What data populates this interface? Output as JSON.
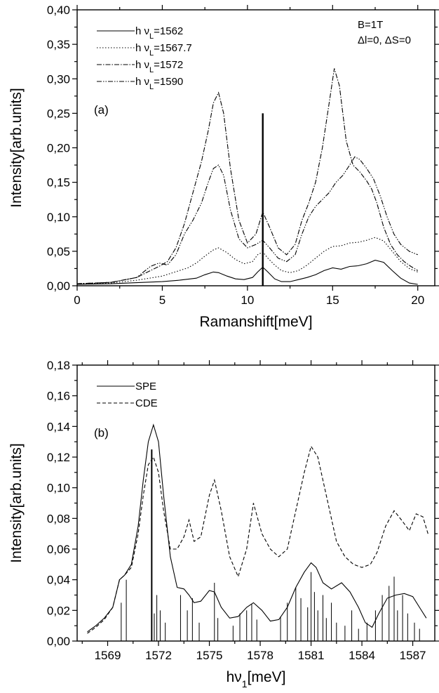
{
  "chart_data": [
    {
      "type": "line",
      "panel_label": "(a)",
      "xlabel": "Ramanshift[meV]",
      "ylabel": "Intensity[arb.units]",
      "xlim": [
        0,
        21
      ],
      "ylim": [
        0,
        0.4
      ],
      "xticks": [
        0,
        5,
        10,
        15,
        20
      ],
      "xtick_labels": [
        "0",
        "5",
        "10",
        "15",
        "20"
      ],
      "yticks": [
        0,
        0.05,
        0.1,
        0.15,
        0.2,
        0.25,
        0.3,
        0.35,
        0.4
      ],
      "ytick_labels": [
        "0,00",
        "0,05",
        "0,10",
        "0,15",
        "0,20",
        "0,25",
        "0,30",
        "0,35",
        "0,40"
      ],
      "legend_position": "top-left",
      "annotations": [
        "B=1T",
        "Δl=0,   ΔS=0"
      ],
      "vertical_marker": {
        "x": 10.9,
        "y": 0.25
      },
      "series": [
        {
          "name": "h ν_L=1562",
          "legend_prefix": "h ν",
          "legend_sub": "L",
          "legend_value": "=1562",
          "style": "solid",
          "x": [
            0,
            2,
            4,
            5,
            6,
            7,
            7.5,
            8,
            8.3,
            8.8,
            9.3,
            9.8,
            10.3,
            10.6,
            10.9,
            11.2,
            11.6,
            12,
            12.5,
            13,
            13.5,
            14,
            14.5,
            15,
            15.5,
            16,
            16.5,
            17,
            17.5,
            18,
            18.5,
            19,
            19.5,
            20
          ],
          "y": [
            0.002,
            0.003,
            0.005,
            0.006,
            0.008,
            0.011,
            0.016,
            0.02,
            0.019,
            0.014,
            0.01,
            0.009,
            0.012,
            0.02,
            0.027,
            0.02,
            0.01,
            0.006,
            0.006,
            0.009,
            0.012,
            0.016,
            0.022,
            0.026,
            0.024,
            0.028,
            0.029,
            0.032,
            0.037,
            0.034,
            0.022,
            0.011,
            0.004,
            0.002
          ]
        },
        {
          "name": "h ν_L=1567.7",
          "legend_prefix": "h ν",
          "legend_sub": "L",
          "legend_value": "=1567.7",
          "style": "dotted",
          "x": [
            0,
            2,
            3.5,
            4.5,
            5,
            5.5,
            6,
            6.5,
            7,
            7.5,
            8,
            8.3,
            8.8,
            9.3,
            9.8,
            10.3,
            10.6,
            10.9,
            11.2,
            11.6,
            12,
            12.5,
            13,
            13.5,
            14,
            14.5,
            15,
            15.5,
            16,
            16.5,
            17,
            17.5,
            18,
            18.5,
            19,
            19.5,
            20
          ],
          "y": [
            0.003,
            0.004,
            0.008,
            0.012,
            0.014,
            0.018,
            0.022,
            0.026,
            0.033,
            0.043,
            0.052,
            0.055,
            0.048,
            0.038,
            0.032,
            0.035,
            0.045,
            0.049,
            0.04,
            0.03,
            0.022,
            0.019,
            0.022,
            0.03,
            0.04,
            0.05,
            0.057,
            0.058,
            0.062,
            0.063,
            0.066,
            0.07,
            0.065,
            0.05,
            0.035,
            0.025,
            0.02
          ]
        },
        {
          "name": "h ν_L=1572",
          "legend_prefix": "h ν",
          "legend_sub": "L",
          "legend_value": "=1572",
          "style": "dashdot",
          "x": [
            0,
            2,
            3.5,
            4.3,
            4.8,
            5.3,
            5.8,
            6.3,
            6.8,
            7.3,
            7.7,
            8.0,
            8.3,
            8.6,
            9,
            9.5,
            10,
            10.5,
            10.9,
            11.3,
            11.8,
            12.3,
            12.8,
            13.2,
            13.6,
            14,
            14.4,
            14.8,
            15.1,
            15.4,
            15.8,
            16.2,
            16.6,
            17,
            17.3,
            17.6,
            18,
            18.4,
            18.8,
            19.2,
            19.6,
            20
          ],
          "y": [
            0.003,
            0.005,
            0.012,
            0.022,
            0.028,
            0.035,
            0.055,
            0.09,
            0.135,
            0.18,
            0.225,
            0.265,
            0.28,
            0.25,
            0.17,
            0.095,
            0.062,
            0.075,
            0.107,
            0.085,
            0.055,
            0.045,
            0.06,
            0.095,
            0.12,
            0.15,
            0.2,
            0.265,
            0.315,
            0.29,
            0.21,
            0.175,
            0.165,
            0.152,
            0.14,
            0.12,
            0.085,
            0.06,
            0.045,
            0.035,
            0.028,
            0.022
          ]
        },
        {
          "name": "h ν_L=1590",
          "legend_prefix": "h ν",
          "legend_sub": "L",
          "legend_value": "=1590",
          "style": "dashdotdot",
          "x": [
            0,
            2,
            3.5,
            4.3,
            4.8,
            5.3,
            5.8,
            6.3,
            6.8,
            7.3,
            7.7,
            8.0,
            8.3,
            8.6,
            9,
            9.5,
            10,
            10.5,
            10.9,
            11.3,
            11.8,
            12.3,
            12.8,
            13.2,
            13.6,
            14,
            14.4,
            14.8,
            15.2,
            15.6,
            16,
            16.3,
            16.6,
            17,
            17.4,
            17.8,
            18.2,
            18.6,
            19,
            19.5,
            20
          ],
          "y": [
            0.003,
            0.005,
            0.012,
            0.028,
            0.033,
            0.03,
            0.045,
            0.075,
            0.095,
            0.12,
            0.15,
            0.17,
            0.175,
            0.16,
            0.11,
            0.068,
            0.055,
            0.06,
            0.066,
            0.055,
            0.04,
            0.035,
            0.045,
            0.075,
            0.1,
            0.115,
            0.125,
            0.135,
            0.15,
            0.16,
            0.175,
            0.187,
            0.183,
            0.17,
            0.155,
            0.13,
            0.1,
            0.075,
            0.06,
            0.05,
            0.045
          ]
        }
      ]
    },
    {
      "type": "line",
      "panel_label": "(b)",
      "xlabel_prefix": "hν",
      "xlabel_sub": "1",
      "xlabel_suffix": "[meV]",
      "ylabel": "Intensity[arb.units]",
      "xlim": [
        1567.2,
        1588.3
      ],
      "ylim": [
        0,
        0.18
      ],
      "xticks": [
        1569,
        1572,
        1575,
        1578,
        1581,
        1584,
        1587
      ],
      "xtick_labels": [
        "1569",
        "1572",
        "1575",
        "1578",
        "1581",
        "1584",
        "1587"
      ],
      "yticks": [
        0,
        0.02,
        0.04,
        0.06,
        0.08,
        0.1,
        0.12,
        0.14,
        0.16,
        0.18
      ],
      "ytick_labels": [
        "0,00",
        "0,02",
        "0,04",
        "0,06",
        "0,08",
        "0,10",
        "0,12",
        "0,14",
        "0,16",
        "0,18"
      ],
      "legend_position": "top-left",
      "series": [
        {
          "name": "SPE",
          "style": "solid",
          "x": [
            1567.8,
            1568.3,
            1568.8,
            1569.3,
            1569.7,
            1570.0,
            1570.4,
            1570.8,
            1571.1,
            1571.4,
            1571.7,
            1572.0,
            1572.3,
            1572.7,
            1573.1,
            1573.5,
            1573.8,
            1574.1,
            1574.5,
            1575.0,
            1575.3,
            1575.7,
            1576.2,
            1576.7,
            1577.2,
            1577.6,
            1578.1,
            1578.6,
            1579.1,
            1579.6,
            1580.1,
            1580.6,
            1581.0,
            1581.3,
            1581.7,
            1582.2,
            1582.8,
            1583.3,
            1583.8,
            1584.2,
            1584.6,
            1585.0,
            1585.5,
            1586.0,
            1586.5,
            1587.0,
            1587.4,
            1587.8
          ],
          "y": [
            0.006,
            0.01,
            0.015,
            0.022,
            0.04,
            0.043,
            0.05,
            0.075,
            0.105,
            0.13,
            0.141,
            0.13,
            0.095,
            0.055,
            0.035,
            0.034,
            0.03,
            0.025,
            0.026,
            0.033,
            0.032,
            0.022,
            0.015,
            0.016,
            0.022,
            0.025,
            0.02,
            0.013,
            0.014,
            0.022,
            0.035,
            0.045,
            0.051,
            0.048,
            0.038,
            0.034,
            0.038,
            0.032,
            0.022,
            0.012,
            0.009,
            0.018,
            0.028,
            0.03,
            0.031,
            0.029,
            0.022,
            0.015
          ]
        },
        {
          "name": "CDE",
          "style": "dashed",
          "x": [
            1567.8,
            1568.3,
            1568.8,
            1569.3,
            1569.7,
            1570.0,
            1570.4,
            1570.8,
            1571.1,
            1571.4,
            1571.7,
            1572.0,
            1572.3,
            1572.7,
            1573.1,
            1573.5,
            1573.8,
            1574.1,
            1574.5,
            1575.0,
            1575.3,
            1575.7,
            1576.2,
            1576.7,
            1577.2,
            1577.6,
            1578.1,
            1578.6,
            1579.1,
            1579.6,
            1580.1,
            1580.6,
            1581.0,
            1581.4,
            1581.9,
            1582.5,
            1583.0,
            1583.5,
            1584.0,
            1584.5,
            1584.9,
            1585.4,
            1585.9,
            1586.4,
            1586.8,
            1587.2,
            1587.6,
            1587.9
          ],
          "y": [
            0.005,
            0.009,
            0.014,
            0.022,
            0.04,
            0.043,
            0.048,
            0.07,
            0.095,
            0.115,
            0.12,
            0.11,
            0.085,
            0.06,
            0.06,
            0.068,
            0.079,
            0.065,
            0.068,
            0.095,
            0.105,
            0.085,
            0.055,
            0.042,
            0.06,
            0.09,
            0.07,
            0.06,
            0.055,
            0.06,
            0.085,
            0.11,
            0.127,
            0.12,
            0.095,
            0.065,
            0.055,
            0.05,
            0.048,
            0.05,
            0.058,
            0.075,
            0.085,
            0.078,
            0.072,
            0.083,
            0.081,
            0.07
          ]
        }
      ],
      "stick_spectrum": {
        "x": [
          1569.8,
          1570.1,
          1571.6,
          1571.75,
          1571.9,
          1572.1,
          1572.4,
          1573.3,
          1573.7,
          1574.0,
          1574.4,
          1575.3,
          1575.5,
          1576.4,
          1576.8,
          1577.2,
          1577.5,
          1577.8,
          1579.2,
          1579.6,
          1580.1,
          1580.4,
          1580.8,
          1581.0,
          1581.2,
          1581.4,
          1581.7,
          1581.9,
          1582.2,
          1582.5,
          1583.0,
          1583.4,
          1583.8,
          1584.3,
          1584.8,
          1585.2,
          1585.6,
          1585.9,
          1586.1,
          1586.4,
          1586.7,
          1587.1,
          1587.4
        ],
        "y": [
          0.025,
          0.04,
          0.125,
          0.018,
          0.03,
          0.02,
          0.012,
          0.03,
          0.02,
          0.028,
          0.012,
          0.038,
          0.015,
          0.01,
          0.018,
          0.02,
          0.024,
          0.014,
          0.016,
          0.025,
          0.035,
          0.028,
          0.022,
          0.045,
          0.032,
          0.02,
          0.03,
          0.015,
          0.025,
          0.012,
          0.01,
          0.02,
          0.008,
          0.012,
          0.02,
          0.03,
          0.036,
          0.042,
          0.02,
          0.03,
          0.018,
          0.012,
          0.008
        ]
      }
    }
  ]
}
